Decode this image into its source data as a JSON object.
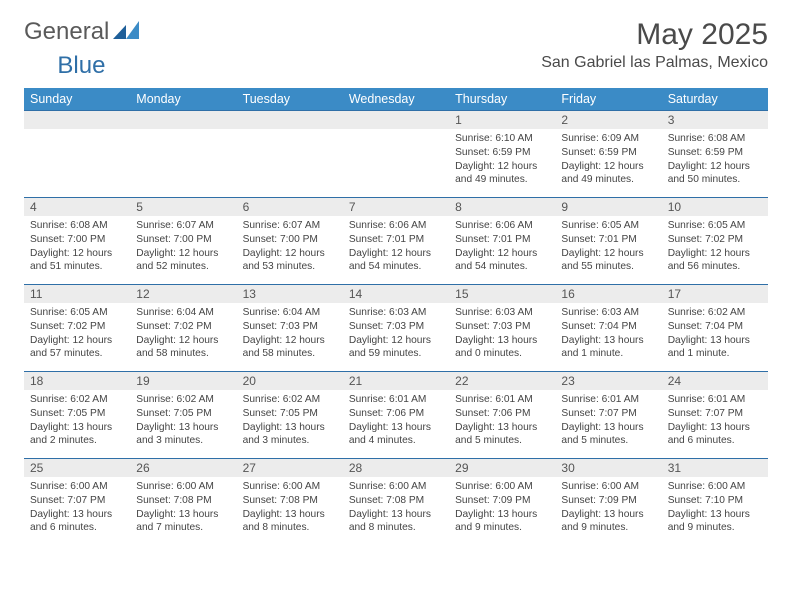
{
  "brand": {
    "name1": "General",
    "name2": "Blue"
  },
  "title": "May 2025",
  "location": "San Gabriel las Palmas, Mexico",
  "colors": {
    "header_bg": "#3b8bc6",
    "header_text": "#ffffff",
    "daynum_bg": "#ececec",
    "week_border": "#2f6fa7",
    "body_text": "#444444",
    "title_text": "#4a4a4a"
  },
  "day_headers": [
    "Sunday",
    "Monday",
    "Tuesday",
    "Wednesday",
    "Thursday",
    "Friday",
    "Saturday"
  ],
  "weeks": [
    [
      {
        "day": "",
        "sunrise": "",
        "sunset": "",
        "daylight1": "",
        "daylight2": ""
      },
      {
        "day": "",
        "sunrise": "",
        "sunset": "",
        "daylight1": "",
        "daylight2": ""
      },
      {
        "day": "",
        "sunrise": "",
        "sunset": "",
        "daylight1": "",
        "daylight2": ""
      },
      {
        "day": "",
        "sunrise": "",
        "sunset": "",
        "daylight1": "",
        "daylight2": ""
      },
      {
        "day": "1",
        "sunrise": "Sunrise: 6:10 AM",
        "sunset": "Sunset: 6:59 PM",
        "daylight1": "Daylight: 12 hours",
        "daylight2": "and 49 minutes."
      },
      {
        "day": "2",
        "sunrise": "Sunrise: 6:09 AM",
        "sunset": "Sunset: 6:59 PM",
        "daylight1": "Daylight: 12 hours",
        "daylight2": "and 49 minutes."
      },
      {
        "day": "3",
        "sunrise": "Sunrise: 6:08 AM",
        "sunset": "Sunset: 6:59 PM",
        "daylight1": "Daylight: 12 hours",
        "daylight2": "and 50 minutes."
      }
    ],
    [
      {
        "day": "4",
        "sunrise": "Sunrise: 6:08 AM",
        "sunset": "Sunset: 7:00 PM",
        "daylight1": "Daylight: 12 hours",
        "daylight2": "and 51 minutes."
      },
      {
        "day": "5",
        "sunrise": "Sunrise: 6:07 AM",
        "sunset": "Sunset: 7:00 PM",
        "daylight1": "Daylight: 12 hours",
        "daylight2": "and 52 minutes."
      },
      {
        "day": "6",
        "sunrise": "Sunrise: 6:07 AM",
        "sunset": "Sunset: 7:00 PM",
        "daylight1": "Daylight: 12 hours",
        "daylight2": "and 53 minutes."
      },
      {
        "day": "7",
        "sunrise": "Sunrise: 6:06 AM",
        "sunset": "Sunset: 7:01 PM",
        "daylight1": "Daylight: 12 hours",
        "daylight2": "and 54 minutes."
      },
      {
        "day": "8",
        "sunrise": "Sunrise: 6:06 AM",
        "sunset": "Sunset: 7:01 PM",
        "daylight1": "Daylight: 12 hours",
        "daylight2": "and 54 minutes."
      },
      {
        "day": "9",
        "sunrise": "Sunrise: 6:05 AM",
        "sunset": "Sunset: 7:01 PM",
        "daylight1": "Daylight: 12 hours",
        "daylight2": "and 55 minutes."
      },
      {
        "day": "10",
        "sunrise": "Sunrise: 6:05 AM",
        "sunset": "Sunset: 7:02 PM",
        "daylight1": "Daylight: 12 hours",
        "daylight2": "and 56 minutes."
      }
    ],
    [
      {
        "day": "11",
        "sunrise": "Sunrise: 6:05 AM",
        "sunset": "Sunset: 7:02 PM",
        "daylight1": "Daylight: 12 hours",
        "daylight2": "and 57 minutes."
      },
      {
        "day": "12",
        "sunrise": "Sunrise: 6:04 AM",
        "sunset": "Sunset: 7:02 PM",
        "daylight1": "Daylight: 12 hours",
        "daylight2": "and 58 minutes."
      },
      {
        "day": "13",
        "sunrise": "Sunrise: 6:04 AM",
        "sunset": "Sunset: 7:03 PM",
        "daylight1": "Daylight: 12 hours",
        "daylight2": "and 58 minutes."
      },
      {
        "day": "14",
        "sunrise": "Sunrise: 6:03 AM",
        "sunset": "Sunset: 7:03 PM",
        "daylight1": "Daylight: 12 hours",
        "daylight2": "and 59 minutes."
      },
      {
        "day": "15",
        "sunrise": "Sunrise: 6:03 AM",
        "sunset": "Sunset: 7:03 PM",
        "daylight1": "Daylight: 13 hours",
        "daylight2": "and 0 minutes."
      },
      {
        "day": "16",
        "sunrise": "Sunrise: 6:03 AM",
        "sunset": "Sunset: 7:04 PM",
        "daylight1": "Daylight: 13 hours",
        "daylight2": "and 1 minute."
      },
      {
        "day": "17",
        "sunrise": "Sunrise: 6:02 AM",
        "sunset": "Sunset: 7:04 PM",
        "daylight1": "Daylight: 13 hours",
        "daylight2": "and 1 minute."
      }
    ],
    [
      {
        "day": "18",
        "sunrise": "Sunrise: 6:02 AM",
        "sunset": "Sunset: 7:05 PM",
        "daylight1": "Daylight: 13 hours",
        "daylight2": "and 2 minutes."
      },
      {
        "day": "19",
        "sunrise": "Sunrise: 6:02 AM",
        "sunset": "Sunset: 7:05 PM",
        "daylight1": "Daylight: 13 hours",
        "daylight2": "and 3 minutes."
      },
      {
        "day": "20",
        "sunrise": "Sunrise: 6:02 AM",
        "sunset": "Sunset: 7:05 PM",
        "daylight1": "Daylight: 13 hours",
        "daylight2": "and 3 minutes."
      },
      {
        "day": "21",
        "sunrise": "Sunrise: 6:01 AM",
        "sunset": "Sunset: 7:06 PM",
        "daylight1": "Daylight: 13 hours",
        "daylight2": "and 4 minutes."
      },
      {
        "day": "22",
        "sunrise": "Sunrise: 6:01 AM",
        "sunset": "Sunset: 7:06 PM",
        "daylight1": "Daylight: 13 hours",
        "daylight2": "and 5 minutes."
      },
      {
        "day": "23",
        "sunrise": "Sunrise: 6:01 AM",
        "sunset": "Sunset: 7:07 PM",
        "daylight1": "Daylight: 13 hours",
        "daylight2": "and 5 minutes."
      },
      {
        "day": "24",
        "sunrise": "Sunrise: 6:01 AM",
        "sunset": "Sunset: 7:07 PM",
        "daylight1": "Daylight: 13 hours",
        "daylight2": "and 6 minutes."
      }
    ],
    [
      {
        "day": "25",
        "sunrise": "Sunrise: 6:00 AM",
        "sunset": "Sunset: 7:07 PM",
        "daylight1": "Daylight: 13 hours",
        "daylight2": "and 6 minutes."
      },
      {
        "day": "26",
        "sunrise": "Sunrise: 6:00 AM",
        "sunset": "Sunset: 7:08 PM",
        "daylight1": "Daylight: 13 hours",
        "daylight2": "and 7 minutes."
      },
      {
        "day": "27",
        "sunrise": "Sunrise: 6:00 AM",
        "sunset": "Sunset: 7:08 PM",
        "daylight1": "Daylight: 13 hours",
        "daylight2": "and 8 minutes."
      },
      {
        "day": "28",
        "sunrise": "Sunrise: 6:00 AM",
        "sunset": "Sunset: 7:08 PM",
        "daylight1": "Daylight: 13 hours",
        "daylight2": "and 8 minutes."
      },
      {
        "day": "29",
        "sunrise": "Sunrise: 6:00 AM",
        "sunset": "Sunset: 7:09 PM",
        "daylight1": "Daylight: 13 hours",
        "daylight2": "and 9 minutes."
      },
      {
        "day": "30",
        "sunrise": "Sunrise: 6:00 AM",
        "sunset": "Sunset: 7:09 PM",
        "daylight1": "Daylight: 13 hours",
        "daylight2": "and 9 minutes."
      },
      {
        "day": "31",
        "sunrise": "Sunrise: 6:00 AM",
        "sunset": "Sunset: 7:10 PM",
        "daylight1": "Daylight: 13 hours",
        "daylight2": "and 9 minutes."
      }
    ]
  ]
}
